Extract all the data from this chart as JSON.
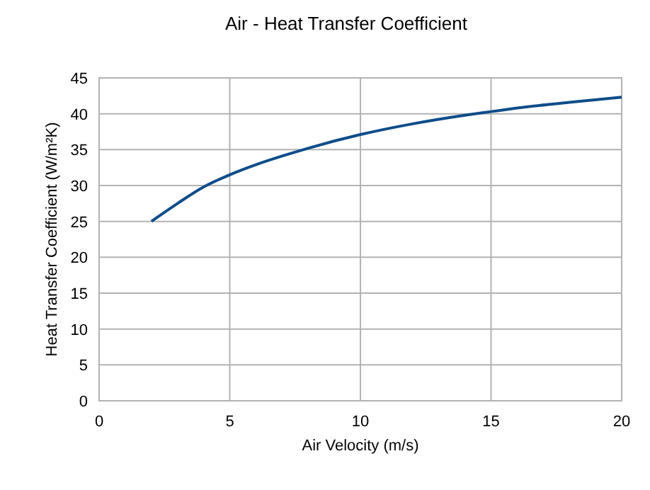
{
  "chart_data": {
    "type": "line",
    "title": "Air - Heat Transfer Coefficient",
    "xlabel": "Air Velocity (m/s)",
    "ylabel": "Heat Transfer Coefficient (W/m²K)",
    "x": [
      2,
      3,
      4,
      5,
      6,
      7,
      8,
      10,
      12,
      14,
      15,
      16,
      18,
      20
    ],
    "series": [
      {
        "color": "#0f4c8a",
        "values": [
          25,
          27.5,
          29.8,
          31.5,
          32.9,
          34.1,
          35.2,
          37.1,
          38.6,
          39.8,
          40.3,
          40.8,
          41.6,
          42.3
        ]
      }
    ],
    "xlim": [
      0,
      20
    ],
    "xticks": [
      0,
      5,
      10,
      15,
      20
    ],
    "ylim": [
      0,
      45
    ],
    "yticks": [
      0,
      5,
      10,
      15,
      20,
      25,
      30,
      35,
      40,
      45
    ],
    "grid": true,
    "marker": "none",
    "line_style": "solid"
  }
}
